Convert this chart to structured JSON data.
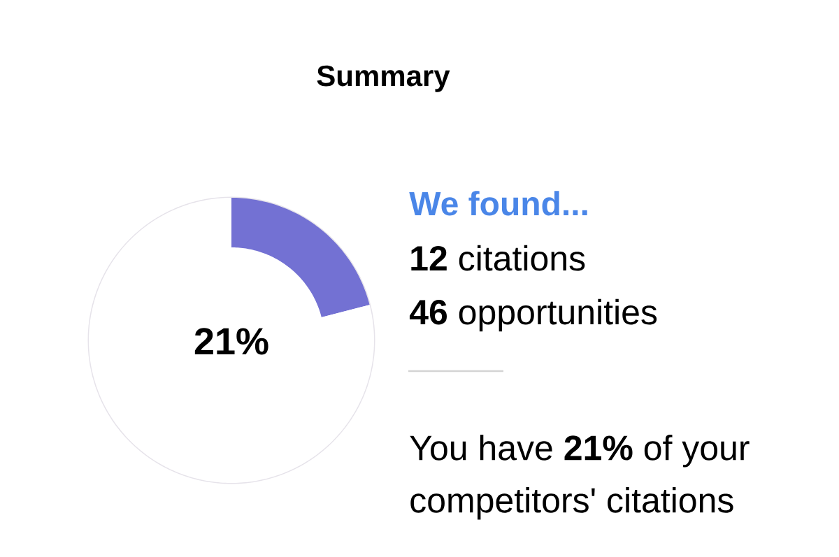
{
  "chart_data": {
    "type": "donut",
    "title": "Summary",
    "categories": [
      null,
      null
    ],
    "values": [
      21,
      79
    ],
    "colors": [
      "#7371d3",
      "#ffffff"
    ],
    "annotations": [
      "We found...",
      "**12** citations",
      "**46** opportunities",
      "You have **21%** of your competitors' citations",
      "21%"
    ]
  }
}
